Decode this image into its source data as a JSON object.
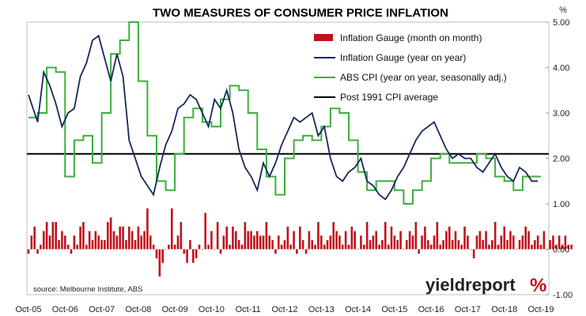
{
  "chart_data": {
    "type": "bar+line",
    "title": "TWO MEASURES OF CONSUMER PRICE INFLATION",
    "y_unit": "%",
    "ylim": [
      -1.0,
      5.0
    ],
    "y_ticks": [
      "5.00",
      "4.00",
      "3.00",
      "2.00",
      "1.00",
      "0.00",
      "-1.00"
    ],
    "x_range": [
      "2005-10",
      "2019-10"
    ],
    "x_ticks": [
      "Oct-05",
      "Oct-06",
      "Oct-07",
      "Oct-08",
      "Oct-09",
      "Oct-10",
      "Oct-11",
      "Oct-12",
      "Oct-13",
      "Oct-14",
      "Oct-15",
      "Oct-16",
      "Oct-17",
      "Oct-18",
      "Oct-19"
    ],
    "legend_position": "top-right",
    "grid": false,
    "colors": {
      "inflation_gauge_mom": "#c0121c",
      "inflation_gauge_yoy": "#14285a",
      "abs_cpi": "#3dae3c",
      "post_1991_avg": "#000000"
    },
    "series": [
      {
        "name": "Inflation Gauge (month on month)",
        "kind": "bar",
        "start": "2005-10",
        "frequency": "monthly",
        "values": [
          -0.1,
          0.3,
          0.5,
          -0.1,
          0.1,
          0.4,
          0.6,
          0.3,
          0.6,
          0.6,
          0.2,
          0.4,
          0.3,
          0.1,
          -0.1,
          0.3,
          0.1,
          0.5,
          0.6,
          0.1,
          0.4,
          0.2,
          0.4,
          0.3,
          0.2,
          0.2,
          0.6,
          0.7,
          0.4,
          0.3,
          0.5,
          0.5,
          0.2,
          0.5,
          0.4,
          0.2,
          0.5,
          0.3,
          0.4,
          0.9,
          0.3,
          0.1,
          -0.2,
          -0.6,
          -0.3,
          0.0,
          0.1,
          0.9,
          0.1,
          0.3,
          0.6,
          -0.1,
          -0.3,
          0.2,
          -0.3,
          -0.2,
          0.1,
          0.0,
          0.8,
          0.1,
          0.4,
          0.0,
          0.6,
          -0.1,
          0.3,
          0.5,
          0.1,
          0.5,
          0.4,
          0.2,
          0.1,
          0.6,
          0.4,
          0.4,
          0.3,
          0.4,
          0.3,
          0.3,
          0.6,
          0.3,
          0.2,
          -0.1,
          0.3,
          0.1,
          0.2,
          0.5,
          0.1,
          0.4,
          -0.1,
          0.5,
          0.2,
          -0.1,
          0.4,
          0.2,
          0.1,
          0.6,
          0.3,
          0.1,
          0.2,
          0.3,
          0.6,
          0.4,
          0.3,
          0.1,
          0.4,
          0.1,
          0.5,
          0.4,
          0.0,
          0.3,
          0.1,
          0.6,
          0.2,
          0.3,
          0.4,
          0.1,
          0.2,
          0.6,
          0.1,
          0.5,
          0.3,
          0.2,
          0.4,
          0.0,
          0.2,
          0.4,
          0.3,
          0.6,
          -0.1,
          0.3,
          0.5,
          0.2,
          0.1,
          0.3,
          0.6,
          0.1,
          0.2,
          0.4,
          0.5,
          0.2,
          0.4,
          0.2,
          0.1,
          0.5,
          0.3,
          0.0,
          -0.2,
          0.3,
          0.4,
          0.2,
          0.4,
          0.1,
          0.2,
          0.6,
          0.1,
          0.3,
          0.5,
          0.2,
          0.4,
          0.3,
          0.0,
          0.2,
          0.3,
          0.5,
          0.4,
          0.1,
          0.2,
          0.3,
          0.1,
          0.4,
          0.0,
          0.2,
          0.3,
          0.1,
          0.3,
          0.1,
          0.3,
          0.1,
          0.1
        ]
      },
      {
        "name": "Inflation Gauge (year on year)",
        "kind": "line",
        "x": [
          "2005-10",
          "2006-01",
          "2006-03",
          "2006-05",
          "2006-07",
          "2006-09",
          "2006-11",
          "2007-01",
          "2007-03",
          "2007-05",
          "2007-07",
          "2007-09",
          "2007-11",
          "2008-01",
          "2008-03",
          "2008-05",
          "2008-07",
          "2008-09",
          "2008-11",
          "2009-01",
          "2009-03",
          "2009-05",
          "2009-07",
          "2009-09",
          "2009-11",
          "2010-01",
          "2010-03",
          "2010-05",
          "2010-07",
          "2010-09",
          "2010-11",
          "2011-01",
          "2011-03",
          "2011-05",
          "2011-07",
          "2011-09",
          "2011-11",
          "2012-01",
          "2012-03",
          "2012-05",
          "2012-07",
          "2012-09",
          "2012-11",
          "2013-01",
          "2013-03",
          "2013-05",
          "2013-07",
          "2013-09",
          "2013-11",
          "2014-01",
          "2014-03",
          "2014-05",
          "2014-07",
          "2014-09",
          "2014-11",
          "2015-01",
          "2015-03",
          "2015-05",
          "2015-07",
          "2015-09",
          "2015-11",
          "2016-01",
          "2016-03",
          "2016-05",
          "2016-07",
          "2016-09",
          "2016-11",
          "2017-01",
          "2017-03",
          "2017-05",
          "2017-07",
          "2017-09",
          "2017-11",
          "2018-01",
          "2018-03",
          "2018-05",
          "2018-07",
          "2018-09",
          "2018-11",
          "2019-01",
          "2019-03",
          "2019-05",
          "2019-07",
          "2019-09"
        ],
        "values": [
          3.4,
          2.8,
          3.9,
          3.6,
          3.2,
          2.7,
          3.0,
          3.1,
          3.8,
          4.1,
          4.6,
          4.7,
          4.2,
          3.7,
          4.3,
          3.8,
          2.4,
          2.0,
          1.6,
          1.4,
          1.2,
          1.8,
          2.3,
          2.6,
          3.1,
          3.2,
          3.4,
          3.3,
          3.0,
          2.7,
          3.3,
          3.1,
          3.5,
          3.0,
          2.2,
          1.8,
          1.6,
          1.3,
          1.9,
          1.6,
          1.9,
          2.3,
          2.6,
          2.9,
          2.8,
          2.9,
          3.0,
          2.5,
          2.7,
          2.0,
          1.6,
          1.5,
          1.7,
          1.8,
          2.0,
          1.5,
          1.4,
          1.2,
          1.1,
          1.3,
          1.6,
          1.8,
          2.1,
          2.4,
          2.6,
          2.7,
          2.8,
          2.5,
          2.2,
          2.0,
          2.1,
          2.0,
          2.0,
          1.8,
          1.7,
          1.9,
          2.1,
          1.8,
          1.6,
          1.5,
          1.8,
          1.7,
          1.5,
          1.5
        ]
      },
      {
        "name": "ABS CPI (year on year, seasonally adj.)",
        "kind": "step",
        "x": [
          "2005-10",
          "2006-01",
          "2006-04",
          "2006-07",
          "2006-10",
          "2007-01",
          "2007-04",
          "2007-07",
          "2007-10",
          "2008-01",
          "2008-04",
          "2008-07",
          "2008-10",
          "2009-01",
          "2009-04",
          "2009-07",
          "2009-10",
          "2010-01",
          "2010-04",
          "2010-07",
          "2010-10",
          "2011-01",
          "2011-04",
          "2011-07",
          "2011-10",
          "2012-01",
          "2012-04",
          "2012-07",
          "2012-10",
          "2013-01",
          "2013-04",
          "2013-07",
          "2013-10",
          "2014-01",
          "2014-04",
          "2014-07",
          "2014-10",
          "2015-01",
          "2015-04",
          "2015-07",
          "2015-10",
          "2016-01",
          "2016-04",
          "2016-07",
          "2016-10",
          "2017-01",
          "2017-04",
          "2017-07",
          "2017-10",
          "2018-01",
          "2018-04",
          "2018-07",
          "2018-10",
          "2019-01",
          "2019-04",
          "2019-07"
        ],
        "values": [
          2.9,
          3.0,
          4.0,
          3.9,
          1.6,
          2.4,
          2.5,
          1.9,
          3.0,
          4.3,
          4.6,
          5.0,
          3.7,
          2.5,
          1.5,
          1.3,
          2.1,
          2.9,
          3.1,
          2.8,
          2.7,
          3.3,
          3.6,
          3.5,
          3.0,
          2.2,
          1.6,
          1.2,
          2.0,
          2.4,
          2.5,
          2.4,
          2.7,
          3.1,
          3.0,
          2.4,
          1.7,
          1.3,
          1.5,
          1.5,
          1.3,
          1.0,
          1.3,
          1.5,
          2.0,
          2.1,
          1.9,
          1.9,
          1.9,
          2.1,
          2.0,
          1.6,
          1.5,
          1.3,
          1.6,
          1.6
        ]
      },
      {
        "name": "Post 1991 CPI average",
        "kind": "hline",
        "value": 2.1
      }
    ],
    "annotations": {
      "source": "source: Melbourne Institute, ABS",
      "brand": "yieldreport",
      "brand_suffix": "%"
    }
  }
}
